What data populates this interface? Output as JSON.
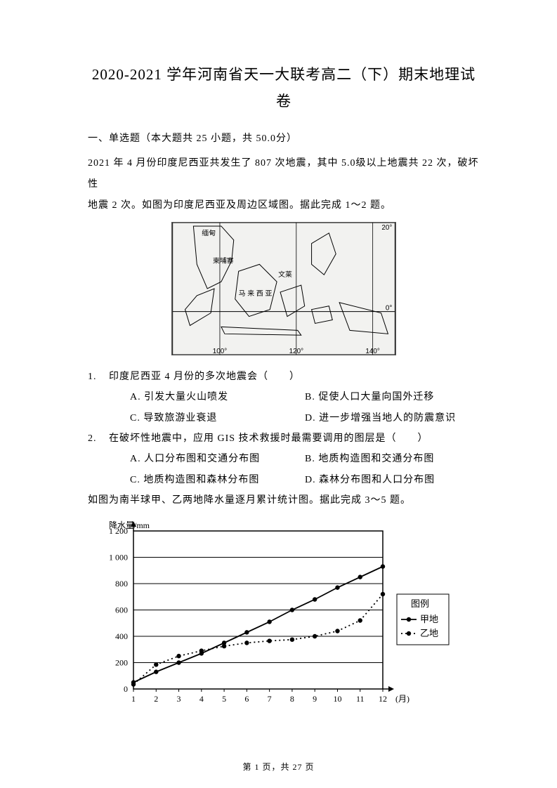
{
  "title_line1": "2020-2021 学年河南省天一大联考高二（下）期末地理试",
  "title_line2": "卷",
  "section_heading": "一、单选题（本大题共 25 小题，共 50.0分）",
  "passage1_line1": "2021 年 4 月份印度尼西亚共发生了 807 次地震，其中 5.0级以上地震共 22 次，破坏性",
  "passage1_line2": "地震 2 次。如图为印度尼西亚及周边区域图。据此完成 1～2 题。",
  "map": {
    "lon_ticks": [
      "100°",
      "120°",
      "140°"
    ],
    "lat_ticks": [
      "20°",
      "0°"
    ],
    "labels": {
      "myanmar": "缅甸",
      "cambodia": "柬埔寨",
      "wenlai": "文莱",
      "malaysia": "马 来 西 亚"
    }
  },
  "q1": {
    "num": "1.",
    "text": "印度尼西亚 4 月份的多次地震会（　　）",
    "A": "引发大量火山喷发",
    "B": "促使人口大量向国外迁移",
    "C": "导致旅游业衰退",
    "D": "进一步增强当地人的防震意识"
  },
  "q2": {
    "num": "2.",
    "text": "在破坏性地震中，应用 GIS 技术救援时最需要调用的图层是（　　）",
    "A": "人口分布图和交通分布图",
    "B": "地质构造图和交通分布图",
    "C": "地质构造图和森林分布图",
    "D": "森林分布图和人口分布图"
  },
  "passage2": "如图为南半球甲、乙两地降水量逐月累计统计图。据此完成 3～5 题。",
  "chart": {
    "y_label": "降水量/mm",
    "y_ticks": [
      0,
      200,
      400,
      600,
      800,
      1000,
      1200
    ],
    "x_ticks": [
      "1",
      "2",
      "3",
      "4",
      "5",
      "6",
      "7",
      "8",
      "9",
      "10",
      "11",
      "12"
    ],
    "x_unit": "(月)",
    "legend_title": "图例",
    "legend_jia": "甲地",
    "legend_yi": "乙地",
    "series_jia": [
      50,
      130,
      200,
      270,
      350,
      430,
      510,
      600,
      680,
      770,
      850,
      930
    ],
    "series_yi": [
      35,
      185,
      250,
      290,
      325,
      350,
      365,
      375,
      400,
      440,
      520,
      720
    ],
    "color_line": "#000000",
    "color_grid": "#000000",
    "marker_size": 3.2,
    "ylim": [
      0,
      1200
    ]
  },
  "footer": "第 1 页，共 27 页"
}
